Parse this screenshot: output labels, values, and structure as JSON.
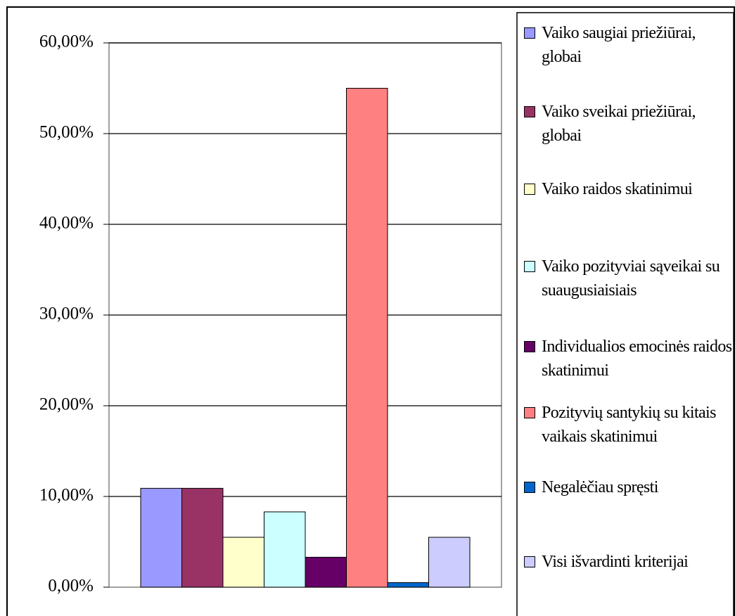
{
  "chart_data": {
    "type": "bar",
    "categories": [
      null
    ],
    "series": [
      {
        "name": "Vaiko saugiai priežiūrai, globai",
        "color": "#9999ff",
        "values": [
          10.9
        ]
      },
      {
        "name": "Vaiko sveikai priežiūrai, globai",
        "color": "#993366",
        "values": [
          10.9
        ]
      },
      {
        "name": "Vaiko raidos skatinimui",
        "color": "#ffffcc",
        "values": [
          5.5
        ]
      },
      {
        "name": "Vaiko pozityviai sąveikai su suaugusiaisiais",
        "color": "#ccffff",
        "values": [
          8.3
        ]
      },
      {
        "name": "Individualios emocinės raidos skatinimui",
        "color": "#660066",
        "values": [
          3.3
        ]
      },
      {
        "name": "Pozityvių santykių su kitais vaikais skatinimui",
        "color": "#ff8080",
        "values": [
          55.0
        ]
      },
      {
        "name": "Negalėčiau spręsti",
        "color": "#0066cc",
        "values": [
          0.5
        ]
      },
      {
        "name": "Visi išvardinti kriterijai",
        "color": "#ccccff",
        "values": [
          5.5
        ]
      }
    ],
    "ylim": [
      0,
      60
    ],
    "yticks": [
      {
        "value": 0,
        "label": "0,00%"
      },
      {
        "value": 10,
        "label": "10,00%"
      },
      {
        "value": 20,
        "label": "20,00%"
      },
      {
        "value": 30,
        "label": "30,00%"
      },
      {
        "value": 40,
        "label": "40,00%"
      },
      {
        "value": 50,
        "label": "50,00%"
      },
      {
        "value": 60,
        "label": "60,00%"
      }
    ],
    "grid": true,
    "legend": "right"
  }
}
